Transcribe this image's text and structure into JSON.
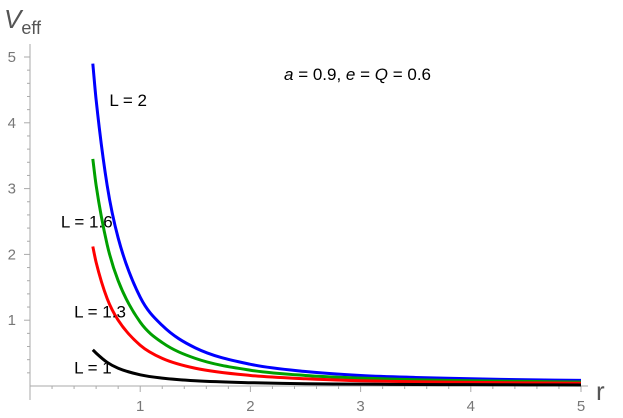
{
  "chart_data": {
    "type": "line",
    "ylabel_main": "V",
    "ylabel_sub": "eff",
    "xlabel": "r",
    "annotation_parts": [
      {
        "text": "a",
        "italic": true
      },
      {
        "text": " = 0.9,  ",
        "italic": false
      },
      {
        "text": "e",
        "italic": true
      },
      {
        "text": " = ",
        "italic": false
      },
      {
        "text": "Q",
        "italic": true
      },
      {
        "text": " = 0.6",
        "italic": false
      }
    ],
    "xlim": [
      0,
      5
    ],
    "ylim": [
      0,
      5
    ],
    "xticks": [
      1,
      2,
      3,
      4,
      5
    ],
    "yticks": [
      1,
      2,
      3,
      4,
      5
    ],
    "series": [
      {
        "name": "L = 2",
        "color": "#0000ff",
        "x": [
          0.57,
          0.6,
          0.7,
          0.8,
          1.0,
          1.2,
          1.5,
          2.0,
          2.5,
          3.0,
          3.5,
          4.0,
          4.5,
          5.0
        ],
        "y": [
          4.9,
          4.35,
          3.05,
          2.25,
          1.35,
          0.92,
          0.58,
          0.33,
          0.22,
          0.16,
          0.13,
          0.11,
          0.095,
          0.085
        ]
      },
      {
        "name": "L = 1.6",
        "color": "#00a000",
        "x": [
          0.57,
          0.6,
          0.7,
          0.8,
          1.0,
          1.2,
          1.5,
          2.0,
          2.5,
          3.0,
          3.5,
          4.0,
          4.5,
          5.0
        ],
        "y": [
          3.45,
          3.05,
          2.15,
          1.6,
          0.97,
          0.66,
          0.42,
          0.24,
          0.16,
          0.12,
          0.095,
          0.08,
          0.07,
          0.06
        ]
      },
      {
        "name": "L = 1.3",
        "color": "#ff0000",
        "x": [
          0.57,
          0.6,
          0.7,
          0.8,
          1.0,
          1.2,
          1.5,
          2.0,
          2.5,
          3.0,
          3.5,
          4.0,
          4.5,
          5.0
        ],
        "y": [
          2.12,
          1.88,
          1.33,
          1.0,
          0.62,
          0.42,
          0.27,
          0.16,
          0.11,
          0.08,
          0.065,
          0.055,
          0.048,
          0.042
        ]
      },
      {
        "name": "L = 1",
        "color": "#000000",
        "x": [
          0.57,
          0.6,
          0.7,
          0.8,
          1.0,
          1.2,
          1.5,
          2.0,
          2.5,
          3.0,
          3.5,
          4.0,
          4.5,
          5.0
        ],
        "y": [
          0.55,
          0.5,
          0.36,
          0.27,
          0.17,
          0.12,
          0.08,
          0.05,
          0.035,
          0.028,
          0.023,
          0.02,
          0.018,
          0.016
        ]
      }
    ],
    "curve_labels": [
      {
        "text": "L = 2",
        "x": 0.72,
        "y": 4.35
      },
      {
        "text": "L = 1.6",
        "x": 0.28,
        "y": 2.5
      },
      {
        "text": "L = 1.3",
        "x": 0.4,
        "y": 1.13
      },
      {
        "text": "L = 1",
        "x": 0.4,
        "y": 0.28
      }
    ]
  }
}
